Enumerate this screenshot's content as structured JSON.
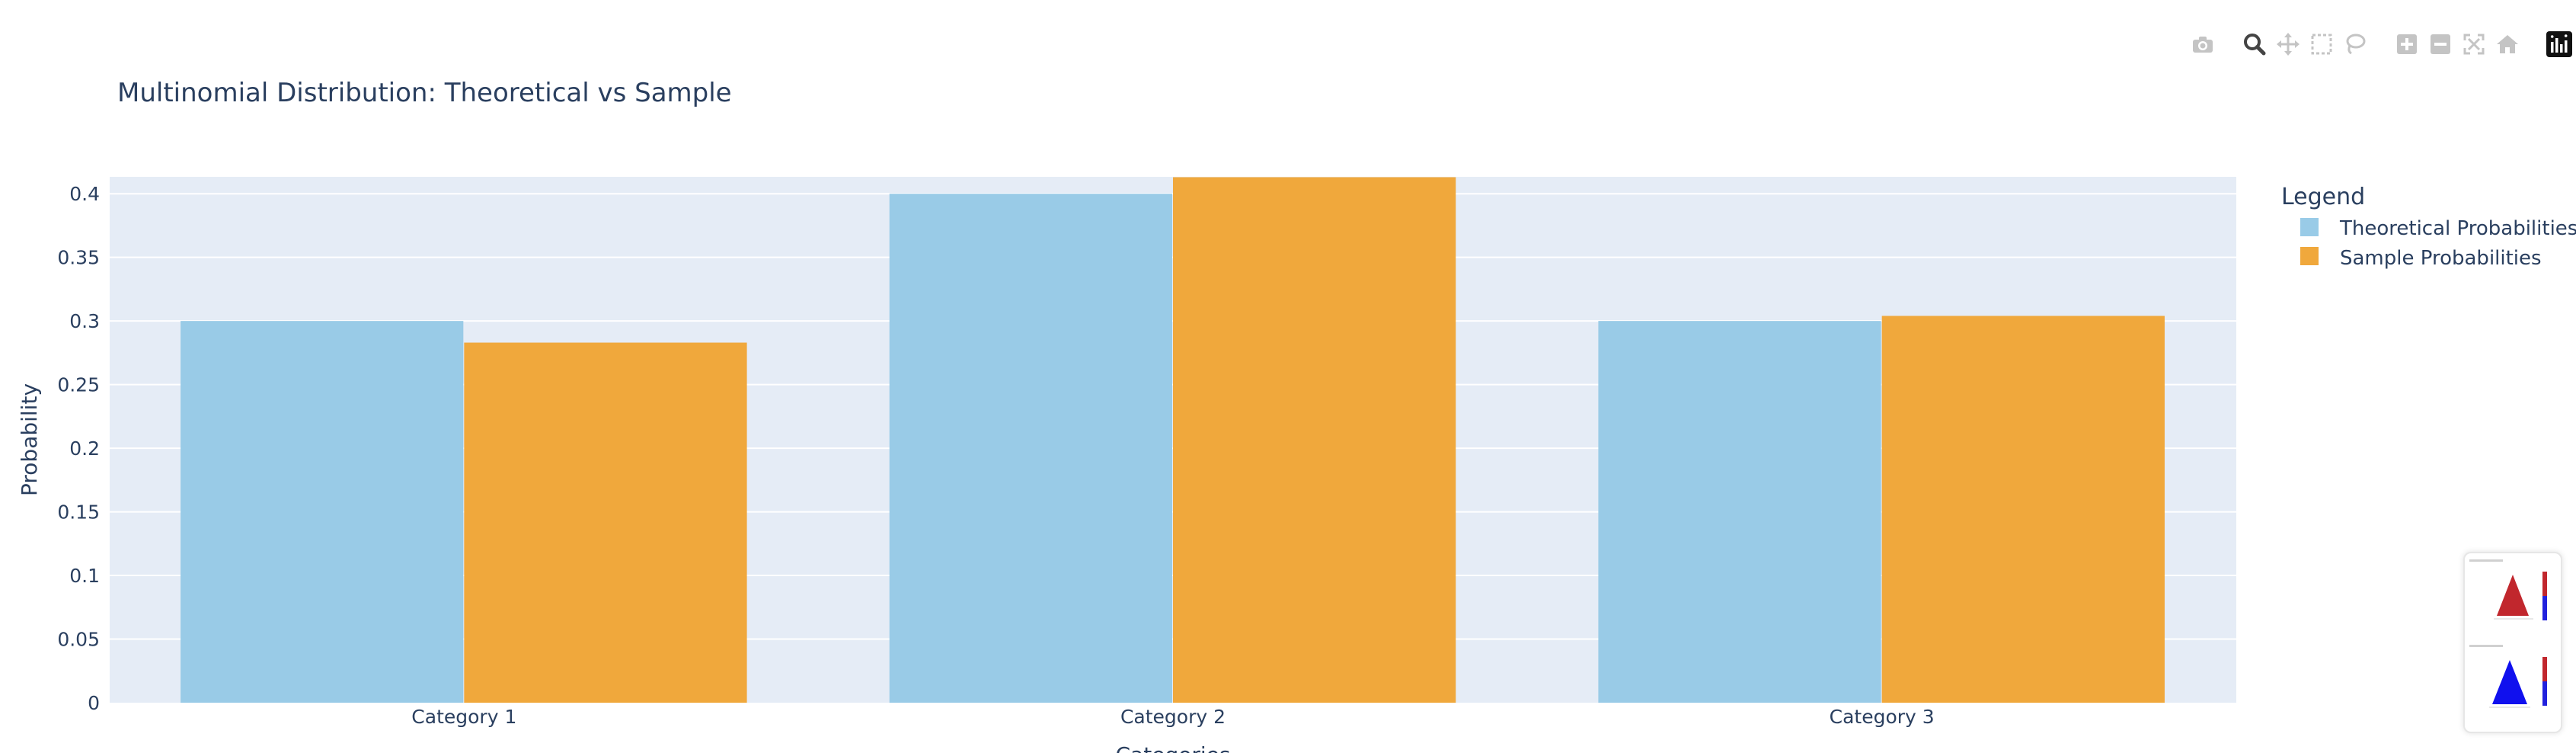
{
  "chart_data": {
    "type": "bar",
    "title": "Multinomial Distribution: Theoretical vs Sample",
    "xlabel": "Categories",
    "ylabel": "Probability",
    "categories": [
      "Category 1",
      "Category 2",
      "Category 3"
    ],
    "series": [
      {
        "name": "Theoretical Probabilities",
        "values": [
          0.3,
          0.4,
          0.3
        ],
        "color": "#99cbe7"
      },
      {
        "name": "Sample Probabilities",
        "values": [
          0.283,
          0.413,
          0.304
        ],
        "color": "#f0a83c"
      }
    ],
    "ylim": [
      0,
      0.4133
    ],
    "yticks": [
      "0",
      "0.05",
      "0.1",
      "0.15",
      "0.2",
      "0.25",
      "0.3",
      "0.35",
      "0.4"
    ],
    "grid": true,
    "legend_title": "Legend",
    "legend_position": "right",
    "plot_bgcolor": "#e5ecf6",
    "text_color": "#2a3f5f"
  },
  "modebar": {
    "icons": [
      "camera-icon",
      "zoom-icon",
      "pan-icon",
      "box-select-icon",
      "lasso-select-icon",
      "zoom-in-icon",
      "zoom-out-icon",
      "autoscale-icon",
      "reset-axes-icon",
      "plotly-logo-icon"
    ]
  }
}
